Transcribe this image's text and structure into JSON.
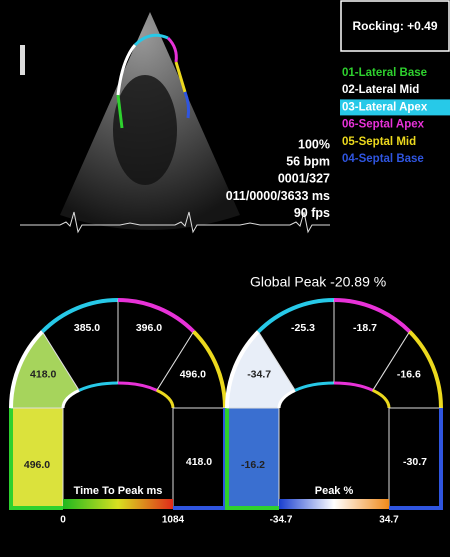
{
  "rocking": "Rocking: +0.49",
  "legend": [
    {
      "label": "01-Lateral Base",
      "color": "#2ed12e"
    },
    {
      "label": "02-Lateral Mid",
      "color": "#ffffff"
    },
    {
      "label": "03-Lateral Apex",
      "color": "#27c9e8",
      "highlight": true
    },
    {
      "label": "06-Septal Apex",
      "color": "#e832d8"
    },
    {
      "label": "05-Septal Mid",
      "color": "#ecd91e"
    },
    {
      "label": "04-Septal Base",
      "color": "#2f55e0"
    }
  ],
  "stats": [
    "100%",
    "56 bpm",
    "0001/327",
    "011/0000/3633 ms",
    "90 fps"
  ],
  "global_peak": "Global Peak -20.89 %",
  "bullseyes": [
    {
      "segments": [
        {
          "label": "496.0",
          "fill": "#dbe23c"
        },
        {
          "label": "418.0",
          "fill": "#a6d45c"
        },
        {
          "label": "385.0",
          "fill": "#000000"
        },
        {
          "label": "396.0",
          "fill": "#000000"
        },
        {
          "label": "496.0",
          "fill": "#000000"
        },
        {
          "label": "418.0",
          "fill": "#000000"
        }
      ],
      "scale": {
        "title": "Time To Peak ms",
        "min": "0",
        "max": "1084",
        "colors": [
          "#1fb81f",
          "#d8e020",
          "#e02a1a"
        ]
      }
    },
    {
      "segments": [
        {
          "label": "-16.2",
          "fill": "#3a6fd0"
        },
        {
          "label": "-34.7",
          "fill": "#e8eef8"
        },
        {
          "label": "-25.3",
          "fill": "#000000"
        },
        {
          "label": "-18.7",
          "fill": "#000000"
        },
        {
          "label": "-16.6",
          "fill": "#000000"
        },
        {
          "label": "-30.7",
          "fill": "#000000"
        }
      ],
      "scale": {
        "title": "Peak %",
        "min": "-34.7",
        "max": "34.7",
        "colors": [
          "#1a3fd0",
          "#ffffff",
          "#f08a1a"
        ]
      }
    }
  ]
}
